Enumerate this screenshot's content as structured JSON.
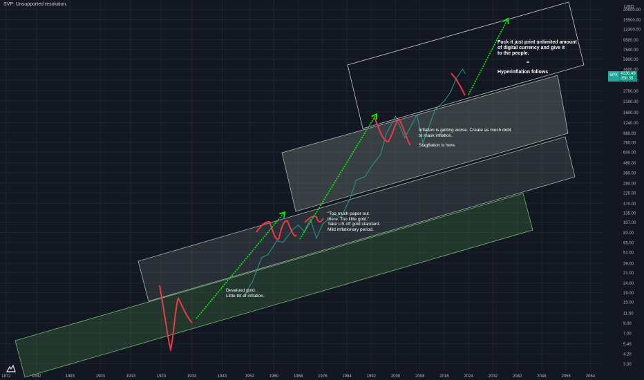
{
  "status_text": "SVP: Unsupported resolution.",
  "price_tag": {
    "symbol": "SPX",
    "last": "4136.49",
    "change": "358.35"
  },
  "annotations": [
    {
      "id": "devalued",
      "text": "Devalued gold.\nLittle bit of inflation."
    },
    {
      "id": "paper",
      "text": "\"Too much paper out\nthere. Too little gold.\"\nTake US off gold standard.\nMild inflationary period."
    },
    {
      "id": "inflation",
      "text": "Inflation is getting worse. Create as much debt\nto mask inflation."
    },
    {
      "id": "stagflation",
      "text": "Stagflation is here."
    },
    {
      "id": "fuck",
      "text": "Fuck it just print unlimited amount\nof digital currency and give it\nto the people."
    },
    {
      "id": "equals",
      "text": "="
    },
    {
      "id": "hyper",
      "text": "Hyperinflation follows"
    }
  ],
  "colors": {
    "background": "#131722",
    "grid": "#1f2430",
    "axis_text": "#b2b5be",
    "price_line": "#26a69a",
    "channel_green_fill": "#4a8a4a",
    "channel_green_stroke": "#6fbf6f",
    "channel_grey_fill": "#7a8a80",
    "channel_grey_stroke": "#aab4ac",
    "arrow": "#00ff00",
    "red_path": "#f23645"
  },
  "chart_data": {
    "type": "line",
    "title": "",
    "y_unit": "USD",
    "y_scale": "log",
    "xlim": [
      1870,
      2068
    ],
    "ylim": [
      3.0,
      22000
    ],
    "x_ticks": [
      "1872",
      "1882",
      "1893",
      "1903",
      "1913",
      "1923",
      "1933",
      "1943",
      "1952",
      "1960",
      "1968",
      "1976",
      "1984",
      "1992",
      "2000",
      "2008",
      "2016",
      "2024",
      "2032",
      "2040",
      "2048",
      "2056",
      "2064"
    ],
    "y_ticks": [
      "20000.00",
      "15500.00",
      "12300.00",
      "9500.00",
      "7500.00",
      "5900.00",
      "4600.00",
      "3500.00",
      "2700.00",
      "2100.00",
      "1600.00",
      "1240.00",
      "960.00",
      "760.00",
      "600.00",
      "460.00",
      "360.00",
      "280.00",
      "220.00",
      "170.00",
      "135.00",
      "107.00",
      "83.00",
      "65.00",
      "51.00",
      "39.00",
      "31.00",
      "24.00",
      "19.00",
      "15.00",
      "11.50",
      "9.00",
      "7.00",
      "5.40",
      "4.20",
      "3.30"
    ],
    "series": [
      {
        "x": [
          1950,
          1953,
          1956,
          1958,
          1961,
          1963,
          1966,
          1968,
          1970,
          1972,
          1974,
          1976,
          1980,
          1982,
          1985,
          1987,
          1990,
          1992,
          1995,
          1997,
          2000,
          2003,
          2007,
          2009,
          2013,
          2016,
          2018,
          2020,
          2022,
          2023
        ],
        "values": [
          17,
          25,
          45,
          48,
          68,
          65,
          88,
          100,
          85,
          115,
          72,
          102,
          130,
          120,
          190,
          300,
          330,
          420,
          560,
          950,
          1450,
          850,
          1500,
          750,
          1700,
          2100,
          2600,
          3700,
          4600,
          4100
        ]
      }
    ]
  }
}
